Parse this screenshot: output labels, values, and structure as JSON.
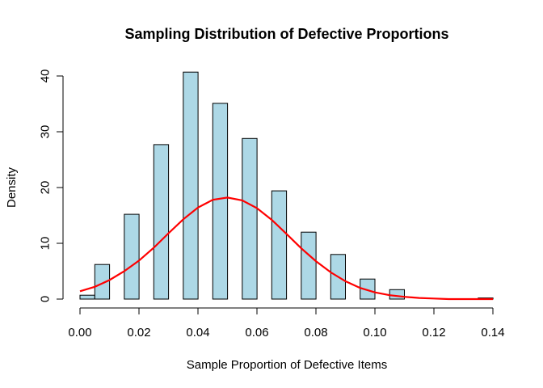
{
  "chart_data": {
    "type": "bar",
    "title": "Sampling Distribution of Defective Proportions",
    "xlabel": "Sample Proportion of Defective Items",
    "ylabel": "Density",
    "xlim": [
      0,
      0.14
    ],
    "ylim": [
      0,
      40
    ],
    "x_ticks": [
      "0.00",
      "0.02",
      "0.04",
      "0.06",
      "0.08",
      "0.10",
      "0.12",
      "0.14"
    ],
    "y_ticks": [
      "0",
      "10",
      "20",
      "30",
      "40"
    ],
    "bars": [
      {
        "x0": 0.0,
        "x1": 0.005,
        "value": 0.7
      },
      {
        "x0": 0.005,
        "x1": 0.01,
        "value": 6.2
      },
      {
        "x0": 0.015,
        "x1": 0.02,
        "value": 15.2
      },
      {
        "x0": 0.025,
        "x1": 0.03,
        "value": 27.7
      },
      {
        "x0": 0.035,
        "x1": 0.04,
        "value": 40.7
      },
      {
        "x0": 0.045,
        "x1": 0.05,
        "value": 35.1
      },
      {
        "x0": 0.055,
        "x1": 0.06,
        "value": 28.8
      },
      {
        "x0": 0.065,
        "x1": 0.07,
        "value": 19.4
      },
      {
        "x0": 0.075,
        "x1": 0.08,
        "value": 12.0
      },
      {
        "x0": 0.085,
        "x1": 0.09,
        "value": 8.0
      },
      {
        "x0": 0.095,
        "x1": 0.1,
        "value": 3.6
      },
      {
        "x0": 0.105,
        "x1": 0.11,
        "value": 1.7
      },
      {
        "x0": 0.135,
        "x1": 0.14,
        "value": 0.2
      }
    ],
    "series": [
      {
        "type": "line",
        "color": "#ff0000",
        "x": [
          0.0,
          0.005,
          0.01,
          0.015,
          0.02,
          0.025,
          0.03,
          0.035,
          0.04,
          0.045,
          0.05,
          0.055,
          0.06,
          0.065,
          0.07,
          0.075,
          0.08,
          0.085,
          0.09,
          0.095,
          0.1,
          0.105,
          0.11,
          0.115,
          0.12,
          0.125,
          0.13,
          0.135,
          0.14
        ],
        "y": [
          1.4,
          2.2,
          3.4,
          5.0,
          6.9,
          9.2,
          11.8,
          14.3,
          16.4,
          17.8,
          18.2,
          17.7,
          16.3,
          14.2,
          11.7,
          9.1,
          6.8,
          4.8,
          3.2,
          2.0,
          1.2,
          0.7,
          0.4,
          0.2,
          0.1,
          0.0,
          0.0,
          0.0,
          0.0
        ]
      }
    ],
    "bar_color": "#add8e6"
  }
}
